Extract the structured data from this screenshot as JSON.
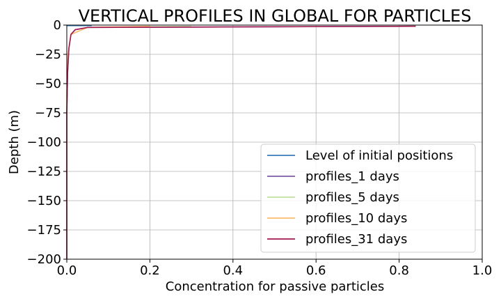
{
  "chart_data": {
    "type": "line",
    "title": "VERTICAL PROFILES IN GLOBAL FOR PARTICLES",
    "xlabel": "Concentration for passive particles",
    "ylabel": "Depth (m)",
    "xlim": [
      0.0,
      1.0
    ],
    "ylim": [
      -200,
      0
    ],
    "xticks": [
      0.0,
      0.2,
      0.4,
      0.6,
      0.8,
      1.0
    ],
    "xtick_labels": [
      "0.0",
      "0.2",
      "0.4",
      "0.6",
      "0.8",
      "1.0"
    ],
    "yticks": [
      0,
      -25,
      -50,
      -75,
      -100,
      -125,
      -150,
      -175,
      -200
    ],
    "ytick_labels": [
      "0",
      "−25",
      "−50",
      "−75",
      "−100",
      "−125",
      "−150",
      "−175",
      "−200"
    ],
    "grid": true,
    "legend_position": "lower-right",
    "series": [
      {
        "name": "Level of initial positions",
        "color": "#3a7db8",
        "x": [
          0.0,
          0.06
        ],
        "y": [
          -0.5,
          -0.5
        ]
      },
      {
        "name": "profiles_1 days",
        "color": "#7b5aa6",
        "x": [
          0.0,
          0.0,
          0.002,
          0.005,
          0.01,
          0.02,
          0.05,
          0.84
        ],
        "y": [
          -200,
          -75,
          -40,
          -20,
          -8,
          -4,
          -2,
          -1
        ]
      },
      {
        "name": "profiles_5 days",
        "color": "#c2e1a3",
        "x": [
          0.0,
          0.0,
          0.003,
          0.01,
          0.05,
          0.3
        ],
        "y": [
          -200,
          -60,
          -25,
          -8,
          -2,
          -1
        ]
      },
      {
        "name": "profiles_10 days",
        "color": "#fdbb6f",
        "x": [
          0.0,
          0.0,
          0.003,
          0.01,
          0.05,
          0.2
        ],
        "y": [
          -200,
          -60,
          -25,
          -8,
          -2,
          -1
        ]
      },
      {
        "name": "profiles_31 days",
        "color": "#a3174f",
        "x": [
          0.0,
          0.0,
          0.002,
          0.005,
          0.01,
          0.02,
          0.05,
          0.84
        ],
        "y": [
          -200,
          -75,
          -40,
          -20,
          -8,
          -4,
          -2,
          -1
        ]
      }
    ]
  }
}
